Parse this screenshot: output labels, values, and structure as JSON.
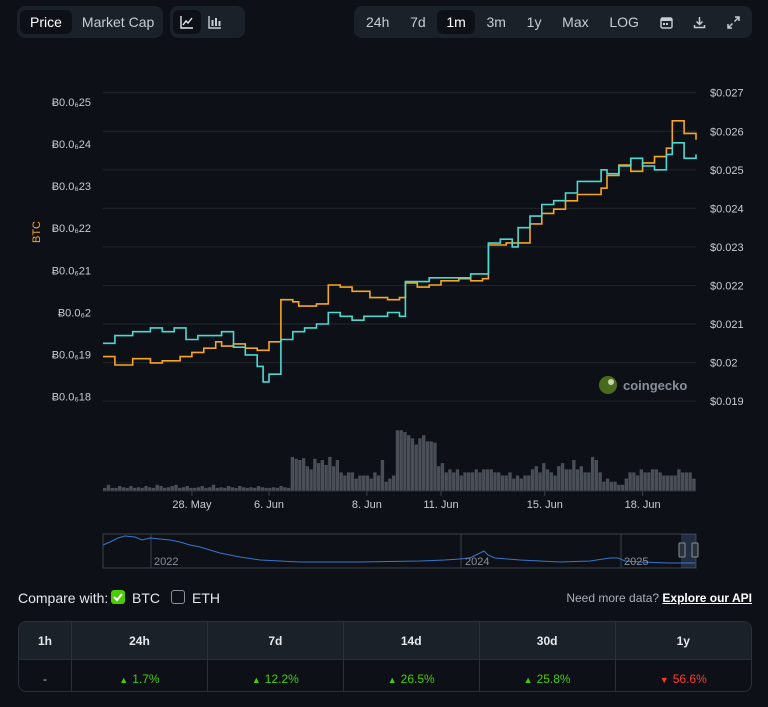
{
  "tabs": {
    "type": [
      "Price",
      "Market Cap"
    ],
    "ranges": [
      "24h",
      "7d",
      "1m",
      "3m",
      "1y",
      "Max",
      "LOG"
    ],
    "active_range": "1m"
  },
  "chart_icons": [
    "line-chart-icon",
    "candlestick-icon"
  ],
  "toolbar_icons": [
    "calendar-icon",
    "download-icon",
    "fullscreen-icon"
  ],
  "chart_data": {
    "type": "line",
    "left_axis_label": "BTC",
    "left_ticks": [
      "Ƀ0.0₆25",
      "Ƀ0.0₆24",
      "Ƀ0.0₆23",
      "Ƀ0.0₆22",
      "Ƀ0.0₆21",
      "Ƀ0.0₆2",
      "Ƀ0.0₆19",
      "Ƀ0.0₆18"
    ],
    "left_tick_values": [
      2.5e-07,
      2.4e-07,
      2.3e-07,
      2.2e-07,
      2.1e-07,
      2e-07,
      1.9e-07,
      1.8e-07
    ],
    "left_range": [
      1.78e-07,
      2.54e-07
    ],
    "right_ticks": [
      "$0.027",
      "$0.026",
      "$0.025",
      "$0.024",
      "$0.023",
      "$0.022",
      "$0.021",
      "$0.02",
      "$0.019"
    ],
    "right_tick_values": [
      0.027,
      0.026,
      0.025,
      0.024,
      0.023,
      0.022,
      0.021,
      0.02,
      0.019
    ],
    "right_range": [
      0.0189,
      0.0272
    ],
    "x_ticks": [
      "28. May",
      "6. Jun",
      "8. Jun",
      "11. Jun",
      "15. Jun",
      "18. Jun"
    ],
    "x_tick_values": [
      0.15,
      0.28,
      0.445,
      0.57,
      0.745,
      0.91
    ],
    "grid": true,
    "watermark": "coingecko",
    "series": [
      {
        "name": "BTC",
        "axis": "left",
        "color": "#f5a623",
        "x": [
          0,
          0.02,
          0.05,
          0.08,
          0.1,
          0.13,
          0.15,
          0.17,
          0.19,
          0.2,
          0.22,
          0.24,
          0.26,
          0.28,
          0.3,
          0.32,
          0.33,
          0.36,
          0.38,
          0.4,
          0.42,
          0.45,
          0.48,
          0.5,
          0.51,
          0.53,
          0.55,
          0.57,
          0.6,
          0.62,
          0.64,
          0.65,
          0.68,
          0.7,
          0.72,
          0.74,
          0.76,
          0.78,
          0.8,
          0.82,
          0.84,
          0.85,
          0.87,
          0.89,
          0.91,
          0.93,
          0.95,
          0.96,
          0.98,
          1.0
        ],
        "y": [
          1.895e-07,
          1.875e-07,
          1.89e-07,
          1.88e-07,
          1.885e-07,
          1.895e-07,
          1.905e-07,
          1.915e-07,
          1.93e-07,
          1.92e-07,
          1.925e-07,
          1.915e-07,
          1.91e-07,
          1.93e-07,
          2.03e-07,
          2.025e-07,
          2.015e-07,
          2.02e-07,
          2.065e-07,
          2.06e-07,
          2.05e-07,
          2.035e-07,
          2.03e-07,
          2.035e-07,
          2.07e-07,
          2.06e-07,
          2.065e-07,
          2.075e-07,
          2.08e-07,
          2.075e-07,
          2.08e-07,
          2.16e-07,
          2.165e-07,
          2.165e-07,
          2.21e-07,
          2.235e-07,
          2.245e-07,
          2.265e-07,
          2.28e-07,
          2.28e-07,
          2.295e-07,
          2.325e-07,
          2.35e-07,
          2.335e-07,
          2.355e-07,
          2.37e-07,
          2.39e-07,
          2.455e-07,
          2.425e-07,
          2.41e-07
        ]
      },
      {
        "name": "USD",
        "axis": "right",
        "color": "#4fd8d0",
        "x": [
          0,
          0.02,
          0.05,
          0.08,
          0.1,
          0.12,
          0.14,
          0.16,
          0.18,
          0.2,
          0.22,
          0.24,
          0.26,
          0.27,
          0.28,
          0.3,
          0.32,
          0.34,
          0.36,
          0.38,
          0.4,
          0.42,
          0.44,
          0.46,
          0.48,
          0.5,
          0.51,
          0.53,
          0.55,
          0.57,
          0.6,
          0.62,
          0.64,
          0.65,
          0.67,
          0.69,
          0.7,
          0.72,
          0.74,
          0.76,
          0.78,
          0.8,
          0.82,
          0.84,
          0.85,
          0.87,
          0.89,
          0.91,
          0.93,
          0.95,
          0.96,
          0.98,
          1.0
        ],
        "y": [
          0.0205,
          0.0207,
          0.0208,
          0.0209,
          0.0208,
          0.0209,
          0.0206,
          0.0207,
          0.0207,
          0.0208,
          0.0204,
          0.0202,
          0.0199,
          0.0195,
          0.0197,
          0.0206,
          0.0208,
          0.0209,
          0.021,
          0.0213,
          0.0212,
          0.0211,
          0.0212,
          0.0212,
          0.0213,
          0.0212,
          0.0221,
          0.0221,
          0.0222,
          0.0222,
          0.0222,
          0.0223,
          0.0223,
          0.0231,
          0.0232,
          0.023,
          0.0235,
          0.0238,
          0.0241,
          0.0242,
          0.0244,
          0.0247,
          0.0247,
          0.025,
          0.0249,
          0.0251,
          0.0253,
          0.0251,
          0.025,
          0.0254,
          0.0257,
          0.0253,
          0.0254
        ]
      }
    ],
    "volume_bars": [
      0.05,
      0.1,
      0.05,
      0.05,
      0.08,
      0.06,
      0.05,
      0.08,
      0.05,
      0.06,
      0.05,
      0.08,
      0.06,
      0.05,
      0.1,
      0.08,
      0.05,
      0.06,
      0.08,
      0.1,
      0.05,
      0.06,
      0.08,
      0.05,
      0.05,
      0.06,
      0.08,
      0.05,
      0.06,
      0.1,
      0.05,
      0.06,
      0.05,
      0.08,
      0.06,
      0.05,
      0.08,
      0.06,
      0.05,
      0.06,
      0.05,
      0.08,
      0.06,
      0.05,
      0.05,
      0.06,
      0.05,
      0.08,
      0.06,
      0.05,
      0.55,
      0.52,
      0.5,
      0.53,
      0.4,
      0.35,
      0.52,
      0.45,
      0.5,
      0.42,
      0.55,
      0.4,
      0.5,
      0.3,
      0.25,
      0.3,
      0.3,
      0.2,
      0.25,
      0.25,
      0.25,
      0.2,
      0.3,
      0.25,
      0.5,
      0.15,
      0.2,
      0.25,
      0.98,
      0.98,
      0.95,
      0.9,
      0.85,
      0.75,
      0.85,
      0.9,
      0.8,
      0.8,
      0.78,
      0.4,
      0.45,
      0.3,
      0.35,
      0.3,
      0.35,
      0.25,
      0.3,
      0.3,
      0.3,
      0.35,
      0.3,
      0.35,
      0.35,
      0.35,
      0.3,
      0.3,
      0.25,
      0.25,
      0.3,
      0.2,
      0.25,
      0.2,
      0.25,
      0.25,
      0.35,
      0.4,
      0.3,
      0.45,
      0.35,
      0.3,
      0.25,
      0.4,
      0.45,
      0.35,
      0.35,
      0.5,
      0.35,
      0.4,
      0.3,
      0.3,
      0.55,
      0.5,
      0.3,
      0.15,
      0.2,
      0.15,
      0.15,
      0.1,
      0.1,
      0.2,
      0.3,
      0.3,
      0.25,
      0.35,
      0.3,
      0.3,
      0.35,
      0.35,
      0.3,
      0.25,
      0.25,
      0.25,
      0.25,
      0.35,
      0.3,
      0.3,
      0.3,
      0.2
    ]
  },
  "navigator": {
    "labels": [
      "2022",
      "2024",
      "2025"
    ]
  },
  "compare": {
    "label": "Compare with:",
    "options": [
      {
        "name": "BTC",
        "checked": true
      },
      {
        "name": "ETH",
        "checked": false
      }
    ],
    "api_text": "Need more data?",
    "api_link": "Explore our API"
  },
  "performance": {
    "headers": [
      "1h",
      "24h",
      "7d",
      "14d",
      "30d",
      "1y"
    ],
    "values": [
      "-",
      "1.7%",
      "12.2%",
      "26.5%",
      "25.8%",
      "56.6%"
    ],
    "directions": [
      "none",
      "up",
      "up",
      "up",
      "up",
      "down"
    ],
    "colors": {
      "up": "#4bcc00",
      "down": "#ff3a33"
    }
  }
}
